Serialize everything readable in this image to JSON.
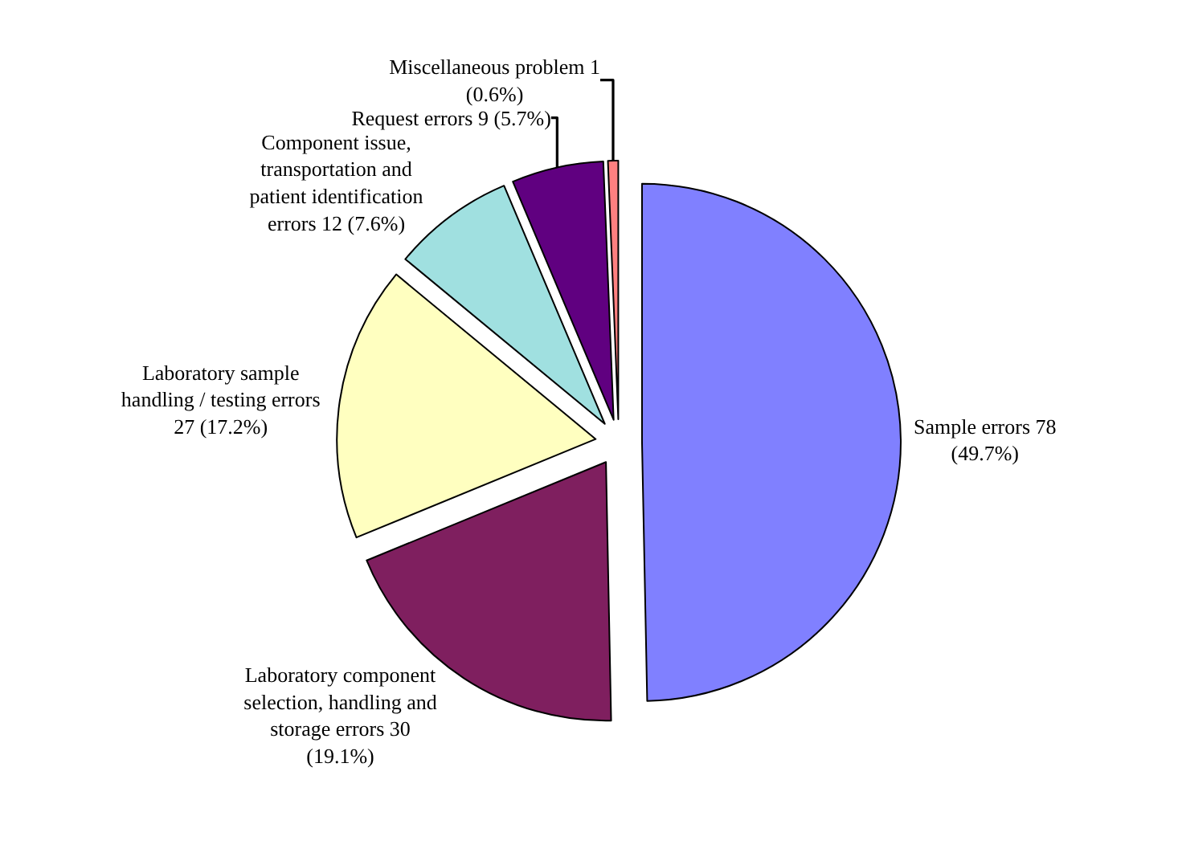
{
  "chart_data": {
    "type": "pie",
    "categories": [
      "Sample errors 78\n(49.7%)",
      "Laboratory component\nselection, handling and\nstorage errors 30\n(19.1%)",
      "Laboratory sample\nhandling / testing errors\n27 (17.2%)",
      "Component issue,\ntransportation and\npatient identification\nerrors 12 (7.6%)",
      "Request errors 9 (5.7%)",
      "Miscellaneous problem 1\n(0.6%)"
    ],
    "values": [
      78,
      30,
      27,
      12,
      9,
      1
    ],
    "colors": [
      "#8080ff",
      "#7f1f5f",
      "#ffffc0",
      "#a0e0e0",
      "#600080",
      "#ff8080"
    ],
    "legend": false
  }
}
